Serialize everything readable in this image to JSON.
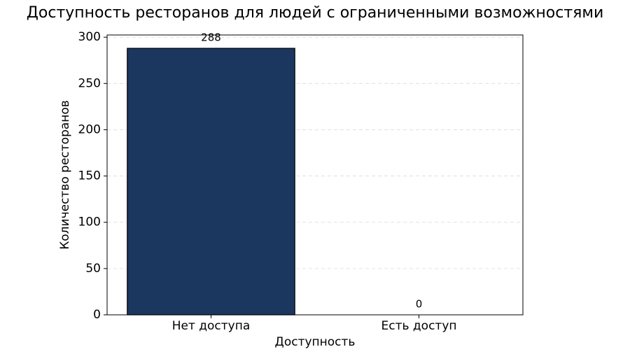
{
  "chart_data": {
    "type": "bar",
    "title": "Доступность ресторанов для людей с ограниченными возможностями",
    "x_label": "Доступность",
    "y_label": "Количество ресторанов",
    "categories": [
      "Нет доступа",
      "Есть доступ"
    ],
    "values": [
      288,
      0
    ],
    "color": "#1b365f",
    "edge_color": "#000000",
    "ylim": [
      0,
      302.4
    ],
    "yticks": [
      0,
      50,
      100,
      150,
      200,
      250,
      300
    ],
    "grid": true
  }
}
